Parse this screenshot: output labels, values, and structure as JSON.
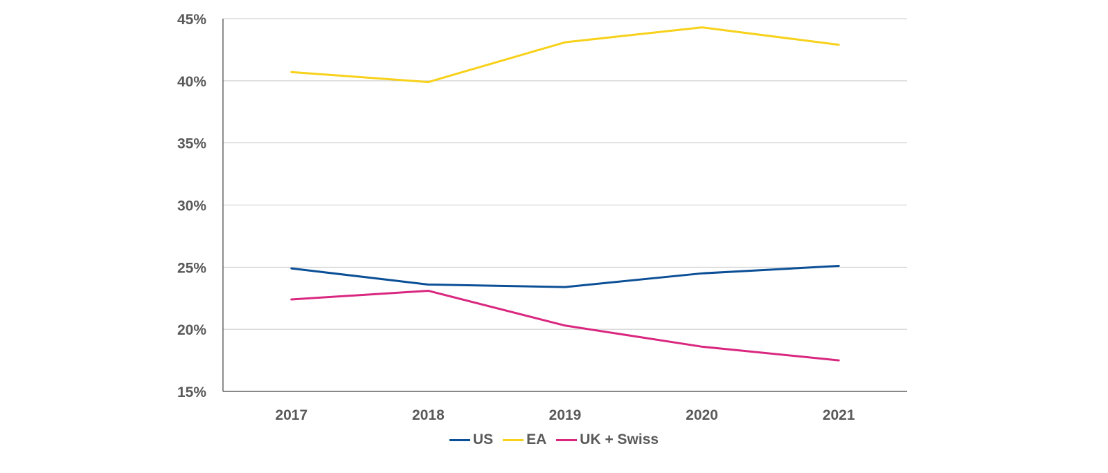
{
  "chart_data": {
    "type": "line",
    "categories": [
      "2017",
      "2018",
      "2019",
      "2020",
      "2021"
    ],
    "ylim": [
      15,
      45
    ],
    "yticks": [
      15,
      20,
      25,
      30,
      35,
      40,
      45
    ],
    "ytick_labels": [
      "15%",
      "20%",
      "25%",
      "30%",
      "35%",
      "40%",
      "45%"
    ],
    "grid": true,
    "legend_position": "bottom",
    "series": [
      {
        "name": "US",
        "color": "#0b4f96",
        "values": [
          24.9,
          23.6,
          23.4,
          24.5,
          25.1
        ]
      },
      {
        "name": "EA",
        "color": "#f7d11a",
        "values": [
          40.7,
          39.9,
          43.1,
          44.3,
          42.9
        ]
      },
      {
        "name": "UK + Swiss",
        "color": "#d9277f",
        "values": [
          22.4,
          23.1,
          20.3,
          18.6,
          17.5
        ]
      }
    ]
  }
}
